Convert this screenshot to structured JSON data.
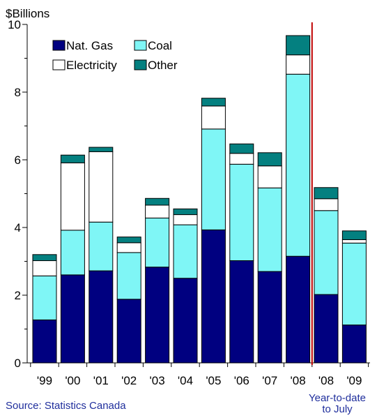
{
  "chart_data": {
    "type": "bar",
    "stacked": true,
    "ylabel": "$Billions",
    "ylim": [
      0,
      10
    ],
    "yticks": [
      "0",
      "2",
      "4",
      "6",
      "8",
      "10"
    ],
    "categories": [
      "'99",
      "'00",
      "'01",
      "'02",
      "'03",
      "'04",
      "'05",
      "'06",
      "'07",
      "'08",
      "'08",
      "'09"
    ],
    "series": [
      {
        "name": "Nat. Gas",
        "color": "#000080",
        "values": [
          1.27,
          2.6,
          2.72,
          1.88,
          2.83,
          2.5,
          3.93,
          3.02,
          2.7,
          3.15,
          2.02,
          1.12
        ]
      },
      {
        "name": "Coal",
        "color": "#7ff6f6",
        "values": [
          1.3,
          1.32,
          1.44,
          1.38,
          1.45,
          1.58,
          2.98,
          2.85,
          2.47,
          5.38,
          2.48,
          2.42
        ]
      },
      {
        "name": "Electricity",
        "color": "#ffffff",
        "values": [
          0.45,
          1.99,
          2.08,
          0.29,
          0.38,
          0.3,
          0.68,
          0.32,
          0.65,
          0.57,
          0.35,
          0.1
        ]
      },
      {
        "name": "Other",
        "color": "#048080",
        "values": [
          0.18,
          0.23,
          0.13,
          0.17,
          0.2,
          0.17,
          0.23,
          0.28,
          0.39,
          0.57,
          0.33,
          0.26
        ]
      }
    ],
    "ytd_label_color": "#1f2e9c",
    "divider_color": "#c00000",
    "legend_position": "top-left",
    "grid": false
  },
  "source_text": "Source: Statistics Canada",
  "ytd_line1": "Year-to-date",
  "ytd_line2": "to July"
}
